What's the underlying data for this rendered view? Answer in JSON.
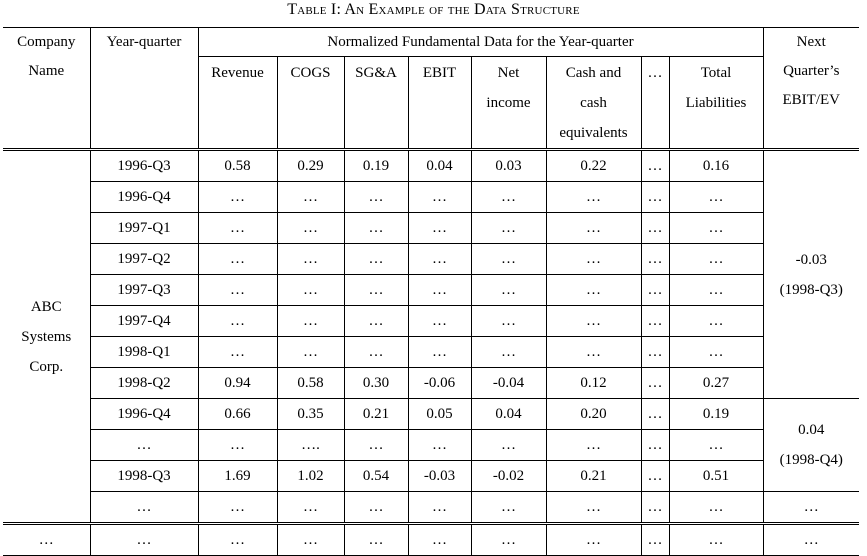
{
  "title": "Table I: An Example of the Data Structure",
  "headers": {
    "company": [
      "Company",
      "Name"
    ],
    "year_quarter": "Year-quarter",
    "group": "Normalized Fundamental Data for the Year-quarter",
    "next": [
      "Next",
      "Quarter’s",
      "EBIT/EV"
    ],
    "cols": [
      [
        "Revenue"
      ],
      [
        "COGS"
      ],
      [
        "SG&A"
      ],
      [
        "EBIT"
      ],
      [
        "Net",
        "income"
      ],
      [
        "Cash and",
        "cash",
        "equivalents"
      ],
      [
        "…"
      ],
      [
        "Total",
        "Liabilities"
      ]
    ]
  },
  "company_abc": [
    "ABC",
    "Systems",
    "Corp."
  ],
  "rows": [
    {
      "yq": "1996-Q3",
      "vals": [
        "0.58",
        "0.29",
        "0.19",
        "0.04",
        "0.03",
        "0.22",
        "…",
        "0.16"
      ]
    },
    {
      "yq": "1996-Q4",
      "vals": [
        "…",
        "…",
        "…",
        "…",
        "…",
        "…",
        "…",
        "…"
      ]
    },
    {
      "yq": "1997-Q1",
      "vals": [
        "…",
        "…",
        "…",
        "…",
        "…",
        "…",
        "…",
        "…"
      ]
    },
    {
      "yq": "1997-Q2",
      "vals": [
        "…",
        "…",
        "…",
        "…",
        "…",
        "…",
        "…",
        "…"
      ]
    },
    {
      "yq": "1997-Q3",
      "vals": [
        "…",
        "…",
        "…",
        "…",
        "…",
        "…",
        "…",
        "…"
      ]
    },
    {
      "yq": "1997-Q4",
      "vals": [
        "…",
        "…",
        "…",
        "…",
        "…",
        "…",
        "…",
        "…"
      ]
    },
    {
      "yq": "1998-Q1",
      "vals": [
        "…",
        "…",
        "…",
        "…",
        "…",
        "…",
        "…",
        "…"
      ]
    },
    {
      "yq": "1998-Q2",
      "vals": [
        "0.94",
        "0.58",
        "0.30",
        "-0.06",
        "-0.04",
        "0.12",
        "…",
        "0.27"
      ]
    },
    {
      "yq": "1996-Q4",
      "vals": [
        "0.66",
        "0.35",
        "0.21",
        "0.05",
        "0.04",
        "0.20",
        "…",
        "0.19"
      ]
    },
    {
      "yq": "…",
      "vals": [
        "…",
        "….",
        "…",
        "…",
        "…",
        "…",
        "…",
        "…"
      ]
    },
    {
      "yq": "1998-Q3",
      "vals": [
        "1.69",
        "1.02",
        "0.54",
        "-0.03",
        "-0.02",
        "0.21",
        "…",
        "0.51"
      ]
    },
    {
      "yq": "…",
      "vals": [
        "…",
        "…",
        "…",
        "…",
        "…",
        "…",
        "…",
        "…"
      ]
    },
    {
      "yq": "…",
      "vals": [
        "…",
        "…",
        "…",
        "…",
        "…",
        "…",
        "…",
        "…"
      ]
    }
  ],
  "next_values": {
    "group1": [
      "-0.03",
      "(1998-Q3)"
    ],
    "group2": [
      "0.04",
      "(1998-Q4)"
    ],
    "row12": "…",
    "row13": "…"
  },
  "last_company": "…"
}
